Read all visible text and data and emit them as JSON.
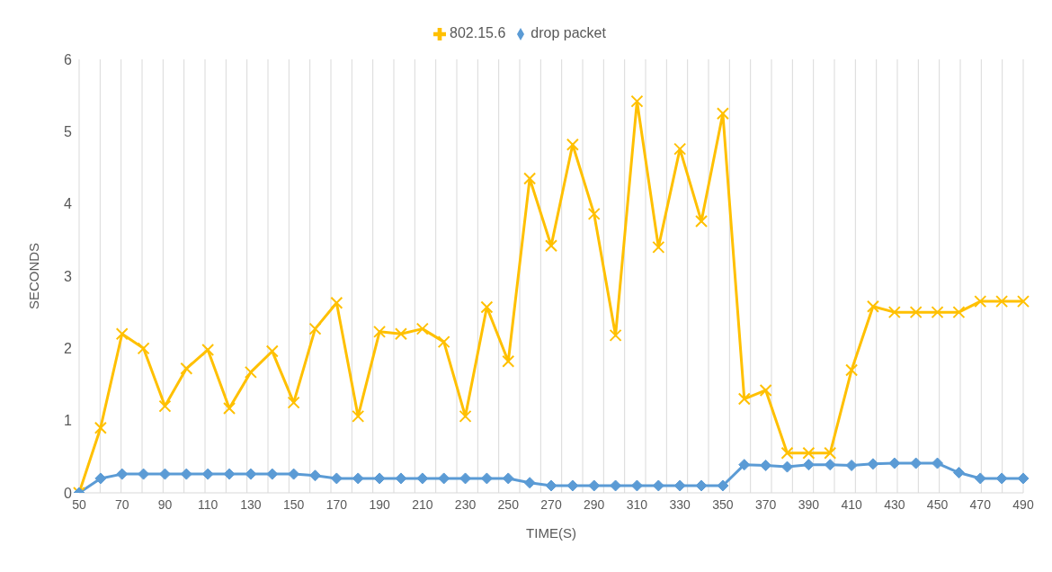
{
  "chart_data": {
    "type": "line",
    "xlabel": "TIME(S)",
    "ylabel": "SECONDS",
    "categories": [
      "50",
      null,
      "70",
      null,
      "90",
      null,
      "110",
      null,
      "130",
      null,
      "150",
      null,
      "170",
      null,
      "190",
      null,
      "210",
      null,
      "230",
      null,
      "250",
      null,
      "270",
      null,
      "290",
      null,
      "310",
      null,
      "330",
      null,
      "350",
      null,
      "370",
      null,
      "390",
      null,
      "410",
      null,
      "430",
      null,
      "450",
      null,
      "470",
      null,
      "490"
    ],
    "series": [
      {
        "name": "802.15.6",
        "color": "#ffc000",
        "marker": "cross",
        "values": [
          0,
          0.9,
          2.2,
          2.0,
          1.2,
          1.72,
          1.98,
          1.17,
          1.67,
          1.96,
          1.25,
          2.27,
          2.63,
          1.06,
          2.23,
          2.2,
          2.27,
          2.09,
          1.06,
          2.57,
          1.82,
          4.35,
          3.42,
          4.82,
          3.86,
          2.18,
          5.42,
          3.4,
          4.76,
          3.76,
          5.25,
          1.3,
          1.42,
          0.55,
          0.55,
          0.55,
          1.7,
          2.58,
          2.5,
          2.5,
          2.5,
          2.5,
          2.65,
          2.65,
          2.65
        ]
      },
      {
        "name": "drop packet",
        "color": "#5b9bd5",
        "marker": "diamond",
        "values": [
          0,
          0.2,
          0.26,
          0.26,
          0.26,
          0.26,
          0.26,
          0.26,
          0.26,
          0.26,
          0.26,
          0.24,
          0.2,
          0.2,
          0.2,
          0.2,
          0.2,
          0.2,
          0.2,
          0.2,
          0.2,
          0.14,
          0.1,
          0.1,
          0.1,
          0.1,
          0.1,
          0.1,
          0.1,
          0.1,
          0.1,
          0.39,
          0.38,
          0.36,
          0.39,
          0.39,
          0.38,
          0.4,
          0.41,
          0.41,
          0.41,
          0.28,
          0.2,
          0.2,
          0.2
        ]
      }
    ],
    "ylim": [
      0,
      6
    ],
    "yticks": [
      0,
      1,
      2,
      3,
      4,
      5,
      6
    ],
    "grid": "x",
    "legend": "top",
    "line_style": "solid"
  }
}
